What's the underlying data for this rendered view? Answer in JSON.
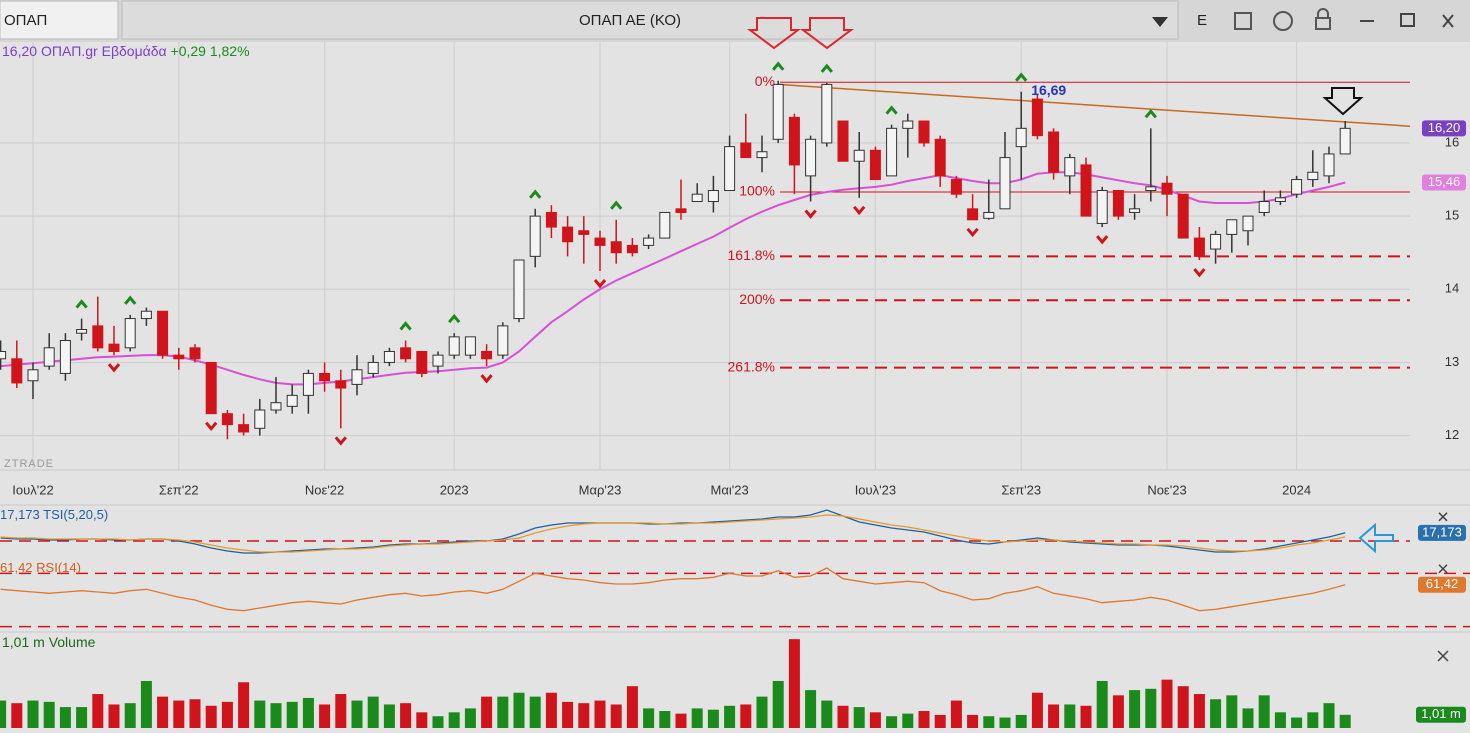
{
  "toolbar": {
    "symbol": "ΟΠΑΠ",
    "title": "ΟΠΑΠ ΑΕ (ΚΟ)",
    "mode": "E"
  },
  "chart_data": [
    {
      "type": "candlestick",
      "title": "ΟΠΑΠ.gr Εβδομάδα",
      "last_label": "16,20",
      "change_label": "+0,29 1,82%",
      "watermark": "ZTRADE",
      "open": [
        13.05,
        13.05,
        12.75,
        12.95,
        12.85,
        13.4,
        13.5,
        13.25,
        13.2,
        13.6,
        13.7,
        13.1,
        13.2,
        13.0,
        12.3,
        12.15,
        12.1,
        12.35,
        12.4,
        12.55,
        12.85,
        12.75,
        12.7,
        12.85,
        13.0,
        13.2,
        13.15,
        12.95,
        13.1,
        13.1,
        13.15,
        13.1,
        13.6,
        14.45,
        15.05,
        14.85,
        14.8,
        14.7,
        14.65,
        14.6,
        14.6,
        14.7,
        15.1,
        15.2,
        15.2,
        15.35,
        16.0,
        15.8,
        16.05,
        16.35,
        15.55,
        16.0,
        16.3,
        15.75,
        15.9,
        15.55,
        16.2,
        16.3,
        16.05,
        15.5,
        15.1,
        14.97,
        15.1,
        15.95,
        16.6,
        16.15,
        15.55,
        15.7,
        14.9,
        15.35,
        15.05,
        15.35,
        15.45,
        15.3,
        14.7,
        14.55,
        14.75,
        14.8,
        15.05,
        15.2,
        15.3,
        15.5,
        15.55,
        15.85
      ],
      "high": [
        13.3,
        13.3,
        13.0,
        13.4,
        13.4,
        13.6,
        13.9,
        13.5,
        13.65,
        13.75,
        13.7,
        13.2,
        13.25,
        13.0,
        12.35,
        12.3,
        12.5,
        12.8,
        12.7,
        12.9,
        13.0,
        12.9,
        13.1,
        13.1,
        13.2,
        13.3,
        13.15,
        13.15,
        13.4,
        13.35,
        13.25,
        13.55,
        14.4,
        15.1,
        15.15,
        15.0,
        15.0,
        14.8,
        14.95,
        14.7,
        14.75,
        15.05,
        15.5,
        15.45,
        15.55,
        16.1,
        16.4,
        16.1,
        16.85,
        16.4,
        16.1,
        16.82,
        16.3,
        16.15,
        15.95,
        16.25,
        16.4,
        16.3,
        16.1,
        15.55,
        15.3,
        15.5,
        16.15,
        16.7,
        16.67,
        16.2,
        15.85,
        15.8,
        15.4,
        15.35,
        15.3,
        16.2,
        15.55,
        15.3,
        14.85,
        14.8,
        14.95,
        15.0,
        15.35,
        15.35,
        15.55,
        15.9,
        15.95,
        16.3
      ],
      "low": [
        12.9,
        12.65,
        12.5,
        12.9,
        12.75,
        13.3,
        13.15,
        13.1,
        13.15,
        13.5,
        13.05,
        12.9,
        13.0,
        12.3,
        11.95,
        12.0,
        12.0,
        12.3,
        12.3,
        12.3,
        12.6,
        12.1,
        12.55,
        12.8,
        12.95,
        13.0,
        12.8,
        12.85,
        13.05,
        13.05,
        12.95,
        13.05,
        13.55,
        14.3,
        14.7,
        14.45,
        14.35,
        14.25,
        14.35,
        14.45,
        14.55,
        14.7,
        14.95,
        15.2,
        15.05,
        15.35,
        15.8,
        15.6,
        16.0,
        15.3,
        15.2,
        15.95,
        15.75,
        15.25,
        15.5,
        15.55,
        15.8,
        15.95,
        15.4,
        15.25,
        14.95,
        14.95,
        15.1,
        15.5,
        16.05,
        15.5,
        15.3,
        15.0,
        14.85,
        14.95,
        14.95,
        15.2,
        15.0,
        14.7,
        14.4,
        14.35,
        14.5,
        14.6,
        15.0,
        15.15,
        15.25,
        15.4,
        15.45,
        15.85
      ],
      "close": [
        13.15,
        12.72,
        12.9,
        13.2,
        13.3,
        13.45,
        13.2,
        13.15,
        13.6,
        13.7,
        13.1,
        13.05,
        13.05,
        12.3,
        12.15,
        12.05,
        12.35,
        12.45,
        12.55,
        12.85,
        12.75,
        12.65,
        12.9,
        13.0,
        13.15,
        13.05,
        12.85,
        13.1,
        13.35,
        13.35,
        13.05,
        13.5,
        14.4,
        15.0,
        14.85,
        14.65,
        14.75,
        14.6,
        14.5,
        14.5,
        14.7,
        15.05,
        15.05,
        15.3,
        15.35,
        15.95,
        15.8,
        15.88,
        16.8,
        15.7,
        16.05,
        16.8,
        15.75,
        15.9,
        15.5,
        16.2,
        16.3,
        16.0,
        15.55,
        15.3,
        14.95,
        15.05,
        15.8,
        16.2,
        16.1,
        15.6,
        15.8,
        15.0,
        15.35,
        15.0,
        15.1,
        15.4,
        15.3,
        14.7,
        14.45,
        14.75,
        14.95,
        15.0,
        15.2,
        15.25,
        15.5,
        15.6,
        15.85,
        16.2
      ],
      "up_color": "#f4f4f4",
      "down_color": "#d0141b",
      "ma": {
        "color": "#d94fd6",
        "value_label": "15,46",
        "values": [
          12.95,
          12.97,
          12.99,
          13.01,
          13.03,
          13.05,
          13.07,
          13.08,
          13.09,
          13.1,
          13.1,
          13.08,
          13.03,
          12.97,
          12.9,
          12.83,
          12.77,
          12.72,
          12.7,
          12.7,
          12.72,
          12.74,
          12.77,
          12.8,
          12.83,
          12.86,
          12.87,
          12.88,
          12.9,
          12.92,
          12.93,
          13.0,
          13.15,
          13.35,
          13.55,
          13.7,
          13.86,
          14.0,
          14.12,
          14.22,
          14.32,
          14.42,
          14.52,
          14.62,
          14.72,
          14.84,
          14.96,
          15.06,
          15.15,
          15.22,
          15.29,
          15.33,
          15.36,
          15.38,
          15.4,
          15.43,
          15.48,
          15.52,
          15.56,
          15.52,
          15.48,
          15.45,
          15.45,
          15.5,
          15.58,
          15.6,
          15.6,
          15.57,
          15.53,
          15.49,
          15.45,
          15.42,
          15.36,
          15.28,
          15.2,
          15.18,
          15.18,
          15.18,
          15.2,
          15.24,
          15.3,
          15.35,
          15.4,
          15.46
        ]
      },
      "fib_levels": [
        {
          "value": 16.83,
          "label": "0%"
        },
        {
          "value": 15.33,
          "label": "100%"
        },
        {
          "value": 14.45,
          "label": "161.8%"
        },
        {
          "value": 13.85,
          "label": "200%"
        },
        {
          "value": 12.93,
          "label": "261.8%"
        }
      ],
      "trendline": {
        "x": [
          48,
          87.6
        ],
        "values": [
          16.8,
          16.22
        ],
        "color": "#c8691e"
      },
      "annotation": {
        "text": "16,69",
        "x": 63,
        "value": 16.69
      },
      "up_signals": [
        5,
        8,
        25,
        28,
        33,
        38,
        48,
        51,
        55,
        63,
        71
      ],
      "down_signals": [
        7,
        13,
        21,
        30,
        37,
        50,
        53,
        60,
        68,
        74
      ],
      "ylim": [
        11.53,
        17.38
      ],
      "yticks": [
        12,
        13,
        14,
        15,
        16
      ],
      "xticks": [
        {
          "value": 2,
          "label": "Ιουλ'22"
        },
        {
          "value": 11,
          "label": "Σεπ'22"
        },
        {
          "value": 20,
          "label": "Νοε'22"
        },
        {
          "value": 28,
          "label": "2023"
        },
        {
          "value": 37,
          "label": "Μαρ'23"
        },
        {
          "value": 45,
          "label": "Μαι'23"
        },
        {
          "value": 54,
          "label": "Ιουλ'23"
        },
        {
          "value": 63,
          "label": "Σεπ'23"
        },
        {
          "value": 72,
          "label": "Νοε'23"
        },
        {
          "value": 80,
          "label": "2024"
        }
      ],
      "grid": true
    },
    {
      "type": "line",
      "ylim": [
        -10,
        45
      ],
      "levels": [
        9
      ],
      "y2lim": [
        26,
        80
      ],
      "y2levels": [
        70,
        30
      ],
      "series": [
        {
          "name": "TSI(5,20,5)",
          "value_label": "17,173",
          "color": "#1f5f9e",
          "values": [
            12,
            11,
            11,
            10,
            10,
            11,
            11,
            10,
            10,
            11,
            11,
            9,
            6,
            2,
            -1,
            -3,
            -3,
            -2,
            -1,
            0,
            1,
            1,
            2,
            3,
            5,
            6,
            6,
            7,
            8,
            9,
            9,
            11,
            16,
            22,
            25,
            27,
            27,
            27,
            27,
            27,
            26,
            26,
            27,
            27,
            28,
            29,
            30,
            31,
            33,
            33,
            35,
            40,
            34,
            28,
            25,
            22,
            20,
            18,
            14,
            10,
            7,
            6,
            8,
            10,
            12,
            10,
            8,
            7,
            6,
            5,
            5,
            5,
            4,
            2,
            0,
            -2,
            -2,
            -1,
            1,
            4,
            7,
            10,
            13,
            17.173
          ]
        },
        {
          "color": "#e69a2e",
          "values": [
            13,
            12,
            12,
            11,
            11,
            11,
            11,
            11,
            10,
            11,
            11,
            10,
            8,
            5,
            2,
            0,
            -2,
            -2,
            -2,
            -1,
            0,
            1,
            1,
            2,
            4,
            5,
            6,
            6,
            7,
            8,
            9,
            10,
            12,
            17,
            21,
            24,
            26,
            27,
            27,
            27,
            27,
            26,
            26,
            27,
            27,
            28,
            29,
            30,
            31,
            32,
            33,
            35,
            34,
            31,
            28,
            25,
            23,
            20,
            17,
            14,
            11,
            9,
            8,
            9,
            10,
            10,
            9,
            8,
            7,
            6,
            6,
            5,
            5,
            4,
            2,
            0,
            -1,
            -1,
            0,
            2,
            5,
            7,
            10,
            13
          ]
        },
        {
          "name": "RSI(14)",
          "value_label": "61,42",
          "axis": "y2",
          "color": "#e0782c",
          "values": [
            58,
            57,
            56,
            55,
            56,
            57,
            56,
            55,
            57,
            58,
            55,
            52,
            50,
            46,
            43,
            42,
            44,
            46,
            48,
            49,
            48,
            47,
            50,
            52,
            54,
            55,
            53,
            54,
            56,
            57,
            55,
            58,
            64,
            70,
            68,
            66,
            65,
            63,
            62,
            62,
            63,
            65,
            66,
            66,
            67,
            70,
            68,
            68,
            72,
            67,
            68,
            74,
            66,
            64,
            62,
            63,
            64,
            63,
            57,
            54,
            50,
            51,
            55,
            57,
            60,
            55,
            53,
            51,
            48,
            49,
            50,
            52,
            50,
            46,
            42,
            43,
            45,
            47,
            49,
            51,
            53,
            55,
            58,
            61.42
          ]
        }
      ]
    },
    {
      "type": "bar",
      "title": "Volume",
      "ylim": [
        0,
        7.5
      ],
      "up_color": "#1a8a1a",
      "down_color": "#d0141b",
      "values": [
        2.1,
        1.9,
        2.1,
        2.0,
        1.6,
        1.6,
        2.6,
        1.8,
        1.9,
        3.6,
        2.4,
        2.1,
        2.2,
        1.7,
        2.0,
        3.5,
        2.1,
        1.9,
        2.0,
        2.3,
        1.8,
        2.6,
        2.1,
        2.4,
        1.8,
        1.9,
        1.2,
        0.9,
        1.2,
        1.5,
        2.4,
        2.4,
        2.7,
        2.4,
        2.7,
        2.0,
        1.9,
        2.1,
        1.8,
        3.2,
        1.5,
        1.3,
        1.1,
        1.5,
        1.4,
        1.7,
        1.8,
        2.4,
        3.6,
        6.8,
        2.9,
        2.1,
        1.7,
        1.6,
        1.2,
        0.9,
        1.1,
        1.3,
        1.0,
        2.1,
        1.0,
        0.9,
        0.8,
        1.0,
        2.7,
        1.8,
        1.8,
        1.7,
        3.6,
        2.5,
        2.9,
        3.0,
        3.7,
        3.2,
        2.6,
        2.2,
        2.5,
        1.5,
        2.5,
        1.2,
        0.8,
        1.2,
        1.9,
        1.01
      ],
      "value_labels": [
        null,
        null,
        null,
        null,
        null,
        null,
        null,
        null,
        null,
        null,
        null,
        null,
        null,
        null,
        null,
        null,
        null,
        null,
        null,
        null,
        null,
        null,
        null,
        null,
        null,
        null,
        null,
        null,
        null,
        null,
        null,
        null,
        null,
        null,
        null,
        null,
        null,
        null,
        null,
        null,
        null,
        null,
        null,
        null,
        null,
        null,
        null,
        null,
        null,
        null,
        null,
        null,
        null,
        null,
        null,
        null,
        null,
        null,
        null,
        null,
        null,
        null,
        null,
        null,
        null,
        null,
        null,
        null,
        null,
        null,
        null,
        null,
        null,
        null,
        null,
        null,
        null,
        null,
        null,
        null,
        null,
        null,
        null,
        "1,01 m"
      ]
    }
  ]
}
